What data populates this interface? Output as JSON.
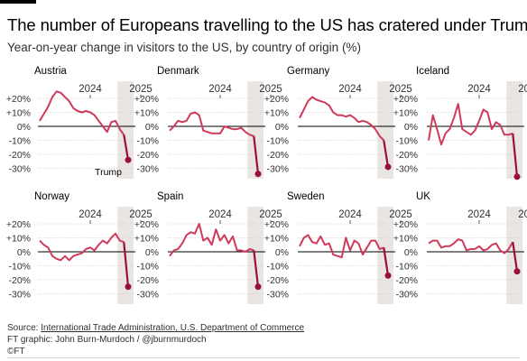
{
  "title": "The number of Europeans travelling to the US has cratered under Trump",
  "subtitle": "Year-on-year change in visitors to the US, by country of origin (%)",
  "footer": {
    "source_label": "Source: ",
    "source_links": "International Trade Administration, U.S. Department of Commerce",
    "graphic": "FT graphic: John Burn-Murdoch / @jburnmurdoch",
    "copyright": "©FT"
  },
  "colors": {
    "line": "#d03a5a",
    "last_point": "#990f3d",
    "shade": "#e9e6e2",
    "zero_line": "#000000",
    "grid": "#d9d3cc",
    "text": "#33302e"
  },
  "chart_data": {
    "type": "line",
    "y_tick_labels": [
      "+20%",
      "+10%",
      "0%",
      "-10%",
      "-20%",
      "-30%"
    ],
    "y_ticks": [
      20,
      10,
      0,
      -10,
      -20,
      -30
    ],
    "ylim": [
      -36,
      27
    ],
    "x_tick_labels": [
      "2024",
      "2025"
    ],
    "x_tick_positions": [
      12,
      24
    ],
    "shaded_region": "2025 onward (Trump)",
    "annotation": "Trump",
    "panels": [
      {
        "name": "Austria",
        "values": [
          4,
          9,
          14,
          21,
          25,
          24,
          21,
          18,
          13,
          11,
          10,
          11,
          10,
          8,
          4,
          0,
          -4,
          3,
          4,
          -2,
          -6,
          -24
        ]
      },
      {
        "name": "Denmark",
        "values": [
          -3,
          0,
          4,
          3,
          4,
          9,
          10,
          8,
          -3,
          -4,
          -5,
          -5,
          -5,
          0,
          -1,
          -2,
          -2,
          -1,
          -4,
          -6,
          -7,
          -34
        ]
      },
      {
        "name": "Germany",
        "values": [
          6,
          12,
          18,
          21,
          19,
          18,
          17,
          15,
          10,
          8,
          8,
          7,
          8,
          6,
          3,
          4,
          3,
          1,
          -2,
          -7,
          -10,
          -29
        ]
      },
      {
        "name": "Iceland",
        "values": [
          -10,
          8,
          -2,
          -13,
          -5,
          -2,
          6,
          16,
          -2,
          -4,
          -6,
          -3,
          4,
          12,
          10,
          -2,
          3,
          1,
          -6,
          -6,
          -5,
          -36
        ]
      },
      {
        "name": "Norway",
        "values": [
          8,
          5,
          3,
          -3,
          -5,
          -6,
          -3,
          -6,
          -3,
          -2,
          -1,
          2,
          3,
          1,
          5,
          8,
          6,
          10,
          13,
          8,
          7,
          -25
        ]
      },
      {
        "name": "Spain",
        "values": [
          -3,
          1,
          2,
          6,
          12,
          14,
          13,
          20,
          8,
          10,
          5,
          16,
          8,
          12,
          6,
          11,
          1,
          1,
          0,
          2,
          1,
          -25
        ]
      },
      {
        "name": "Sweden",
        "values": [
          4,
          10,
          12,
          7,
          6,
          11,
          5,
          6,
          -2,
          -3,
          -4,
          10,
          1,
          8,
          6,
          -2,
          3,
          8,
          8,
          2,
          3,
          -17
        ]
      },
      {
        "name": "UK",
        "values": [
          6,
          8,
          8,
          3,
          4,
          4,
          6,
          9,
          8,
          1,
          2,
          2,
          4,
          1,
          2,
          5,
          6,
          1,
          -1,
          2,
          7,
          -14
        ]
      }
    ]
  }
}
